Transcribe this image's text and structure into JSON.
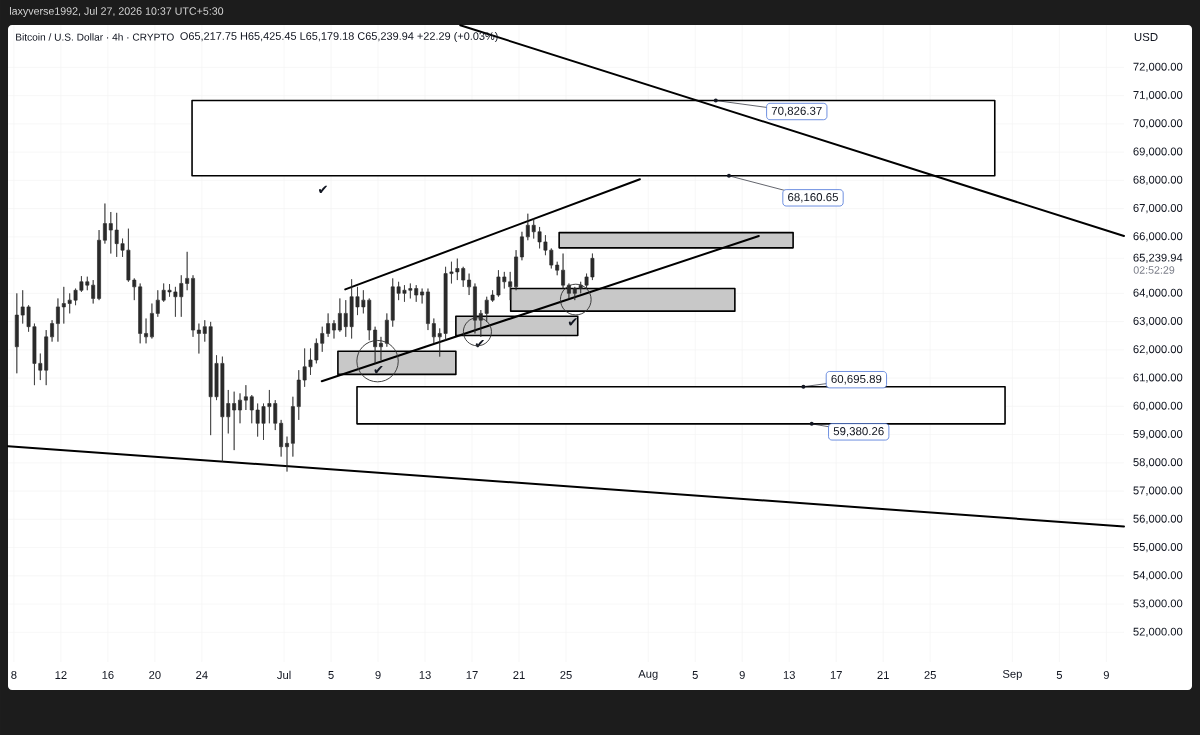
{
  "chart_data": {
    "type": "candlestick",
    "title": "Bitcoin / U.S. Dollar · 4h · CRYPTO",
    "subtitle": "O65,217.75 H65,425.45 L65,179.18 C65,239.94 +22.29 (+0.03%)",
    "ylabel": "USD",
    "annotations": [
      "laxyverse1992, Jul 27, 2026 10:37 UTC+5:30",
      "02:52:29",
      {
        "text": "70,826.37",
        "x": "2026-08-06T18:00",
        "y": 70826.37
      },
      {
        "text": "68,160.65",
        "x": "2026-08-07T21:00",
        "y": 68160.65
      },
      {
        "text": "60,695.89",
        "x": "2026-08-14T05:00",
        "y": 60695.89
      },
      {
        "text": "59,380.26",
        "x": "2026-08-14T22:00",
        "y": 59380.26
      },
      "✔",
      {
        "text": "✔",
        "x": "2026-07-09T01:00",
        "y": 61280
      },
      {
        "text": "✔",
        "x": "2026-07-17T16:00",
        "y": 62200
      },
      {
        "text": "✔",
        "x": "2026-07-25T14:00",
        "y": 62970
      }
    ],
    "xlim": [
      "2026-06-07T12:00",
      "2026-09-10T12:00"
    ],
    "ylim": [
      50950,
      73500
    ],
    "xticks": [
      {
        "value": "2026-06-08",
        "label": "8"
      },
      {
        "value": "2026-06-12",
        "label": "12"
      },
      {
        "value": "2026-06-16",
        "label": "16"
      },
      {
        "value": "2026-06-20",
        "label": "20"
      },
      {
        "value": "2026-06-24",
        "label": "24"
      },
      {
        "value": "2026-07-01",
        "label": "Jul"
      },
      {
        "value": "2026-07-05",
        "label": "5"
      },
      {
        "value": "2026-07-09",
        "label": "9"
      },
      {
        "value": "2026-07-13",
        "label": "13"
      },
      {
        "value": "2026-07-17",
        "label": "17"
      },
      {
        "value": "2026-07-21",
        "label": "21"
      },
      {
        "value": "2026-07-25",
        "label": "25"
      },
      {
        "value": "2026-08-01",
        "label": "Aug"
      },
      {
        "value": "2026-08-05",
        "label": "5"
      },
      {
        "value": "2026-08-09",
        "label": "9"
      },
      {
        "value": "2026-08-13",
        "label": "13"
      },
      {
        "value": "2026-08-17",
        "label": "17"
      },
      {
        "value": "2026-08-21",
        "label": "21"
      },
      {
        "value": "2026-08-25",
        "label": "25"
      },
      {
        "value": "2026-09-01",
        "label": "Sep"
      },
      {
        "value": "2026-09-05",
        "label": "5"
      },
      {
        "value": "2026-09-09",
        "label": "9"
      }
    ],
    "yticks": [
      {
        "value": 52000,
        "label": "52,000.00"
      },
      {
        "value": 53000,
        "label": "53,000.00"
      },
      {
        "value": 54000,
        "label": "54,000.00"
      },
      {
        "value": 55000,
        "label": "55,000.00"
      },
      {
        "value": 56000,
        "label": "56,000.00"
      },
      {
        "value": 57000,
        "label": "57,000.00"
      },
      {
        "value": 58000,
        "label": "58,000.00"
      },
      {
        "value": 59000,
        "label": "59,000.00"
      },
      {
        "value": 60000,
        "label": "60,000.00"
      },
      {
        "value": 61000,
        "label": "61,000.00"
      },
      {
        "value": 62000,
        "label": "62,000.00"
      },
      {
        "value": 63000,
        "label": "63,000.00"
      },
      {
        "value": 64000,
        "label": "64,000.00"
      },
      {
        "value": 65239.94,
        "label": "65,239.94"
      },
      {
        "value": 66000,
        "label": "66,000.00"
      },
      {
        "value": 67000,
        "label": "67,000.00"
      },
      {
        "value": 68000,
        "label": "68,000.00"
      },
      {
        "value": 69000,
        "label": "69,000.00"
      },
      {
        "value": 70000,
        "label": "70,000.00"
      },
      {
        "value": 71000,
        "label": "71,000.00"
      },
      {
        "value": 72000,
        "label": "72,000.00"
      }
    ],
    "grid": true,
    "series": [
      {
        "color": "#2a2a2a",
        "x": [
          "2026-06-08T06:00",
          "2026-06-08T18:00",
          "2026-06-09T06:00",
          "2026-06-09T18:00",
          "2026-06-10T06:00",
          "2026-06-10T18:00",
          "2026-06-11T06:00",
          "2026-06-11T18:00",
          "2026-06-12T06:00",
          "2026-06-12T18:00",
          "2026-06-13T06:00",
          "2026-06-13T18:00",
          "2026-06-14T06:00",
          "2026-06-14T18:00",
          "2026-06-15T06:00",
          "2026-06-15T18:00",
          "2026-06-16T06:00",
          "2026-06-16T18:00",
          "2026-06-17T06:00",
          "2026-06-17T18:00",
          "2026-06-18T06:00",
          "2026-06-18T18:00",
          "2026-06-19T06:00",
          "2026-06-19T18:00",
          "2026-06-20T06:00",
          "2026-06-20T18:00",
          "2026-06-21T06:00",
          "2026-06-21T18:00",
          "2026-06-22T06:00",
          "2026-06-22T18:00",
          "2026-06-23T06:00",
          "2026-06-23T18:00",
          "2026-06-24T06:00",
          "2026-06-24T18:00",
          "2026-06-25T06:00",
          "2026-06-25T18:00",
          "2026-06-26T06:00",
          "2026-06-26T18:00",
          "2026-06-27T06:00",
          "2026-06-27T18:00",
          "2026-06-28T06:00",
          "2026-06-28T18:00",
          "2026-06-29T06:00",
          "2026-06-29T18:00",
          "2026-06-30T06:00",
          "2026-06-30T18:00",
          "2026-07-01T06:00",
          "2026-07-01T18:00",
          "2026-07-02T06:00",
          "2026-07-02T18:00",
          "2026-07-03T06:00",
          "2026-07-03T18:00",
          "2026-07-04T06:00",
          "2026-07-04T18:00",
          "2026-07-05T06:00",
          "2026-07-05T18:00",
          "2026-07-06T06:00",
          "2026-07-06T18:00",
          "2026-07-07T06:00",
          "2026-07-07T18:00",
          "2026-07-08T06:00",
          "2026-07-08T18:00",
          "2026-07-09T06:00",
          "2026-07-09T18:00",
          "2026-07-10T06:00",
          "2026-07-10T18:00",
          "2026-07-11T06:00",
          "2026-07-11T18:00",
          "2026-07-12T06:00",
          "2026-07-12T18:00",
          "2026-07-13T06:00",
          "2026-07-13T18:00",
          "2026-07-14T06:00",
          "2026-07-14T18:00",
          "2026-07-15T06:00",
          "2026-07-15T18:00",
          "2026-07-16T06:00",
          "2026-07-16T18:00",
          "2026-07-17T06:00",
          "2026-07-17T18:00",
          "2026-07-18T06:00",
          "2026-07-18T18:00",
          "2026-07-19T06:00",
          "2026-07-19T18:00",
          "2026-07-20T06:00",
          "2026-07-20T18:00",
          "2026-07-21T06:00",
          "2026-07-21T18:00",
          "2026-07-22T06:00",
          "2026-07-22T18:00",
          "2026-07-23T06:00",
          "2026-07-23T18:00",
          "2026-07-24T06:00",
          "2026-07-24T18:00",
          "2026-07-25T06:00",
          "2026-07-25T18:00",
          "2026-07-26T06:00",
          "2026-07-26T18:00",
          "2026-07-27T06:00"
        ],
        "ohlc": [
          [
            62110,
            64000,
            61170,
            63230
          ],
          [
            63230,
            64110,
            62930,
            63520
          ],
          [
            63520,
            63580,
            62640,
            62820
          ],
          [
            62820,
            62930,
            60750,
            61520
          ],
          [
            61520,
            61870,
            60930,
            61280
          ],
          [
            61280,
            62700,
            60750,
            62460
          ],
          [
            62460,
            63050,
            62290,
            62930
          ],
          [
            62930,
            63820,
            62290,
            63520
          ],
          [
            63520,
            64230,
            62930,
            63640
          ],
          [
            63640,
            64000,
            63290,
            63760
          ],
          [
            63760,
            64170,
            63580,
            64110
          ],
          [
            64110,
            64610,
            64050,
            64410
          ],
          [
            64410,
            64590,
            64110,
            64290
          ],
          [
            64290,
            64470,
            63640,
            63820
          ],
          [
            63820,
            66240,
            63760,
            65880
          ],
          [
            65880,
            67180,
            65760,
            66470
          ],
          [
            66470,
            66880,
            65410,
            66240
          ],
          [
            66240,
            66850,
            65290,
            65760
          ],
          [
            65760,
            65940,
            65290,
            65530
          ],
          [
            65530,
            66290,
            64410,
            64470
          ],
          [
            64470,
            64530,
            63760,
            64230
          ],
          [
            64230,
            64350,
            62230,
            62580
          ],
          [
            62580,
            63110,
            62230,
            62460
          ],
          [
            62460,
            63640,
            62400,
            63290
          ],
          [
            63290,
            64110,
            63170,
            63760
          ],
          [
            63760,
            64350,
            63700,
            64110
          ],
          [
            64110,
            64330,
            63880,
            64050
          ],
          [
            64050,
            64230,
            63170,
            63880
          ],
          [
            63880,
            64640,
            63170,
            64350
          ],
          [
            64350,
            65470,
            64110,
            64530
          ],
          [
            64530,
            64640,
            62460,
            62700
          ],
          [
            62700,
            62930,
            61870,
            62580
          ],
          [
            62580,
            63050,
            62290,
            62820
          ],
          [
            62820,
            62990,
            58980,
            60340
          ],
          [
            60340,
            61810,
            60220,
            61520
          ],
          [
            61520,
            61760,
            58040,
            59630
          ],
          [
            59630,
            60580,
            59040,
            60100
          ],
          [
            60100,
            60520,
            58450,
            59870
          ],
          [
            59870,
            60460,
            59400,
            60220
          ],
          [
            60220,
            60750,
            59870,
            60340
          ],
          [
            60340,
            60400,
            59400,
            59870
          ],
          [
            59870,
            60100,
            58930,
            59400
          ],
          [
            59400,
            60100,
            58810,
            59990
          ],
          [
            59990,
            60580,
            59400,
            60100
          ],
          [
            60100,
            60220,
            59160,
            59400
          ],
          [
            59400,
            59520,
            58220,
            58570
          ],
          [
            58570,
            58930,
            57690,
            58690
          ],
          [
            58690,
            60340,
            58220,
            59990
          ],
          [
            59990,
            61280,
            59520,
            60930
          ],
          [
            60930,
            62050,
            60690,
            61400
          ],
          [
            61400,
            62050,
            61110,
            61640
          ],
          [
            61640,
            62400,
            61520,
            62230
          ],
          [
            62230,
            62820,
            61930,
            62580
          ],
          [
            62580,
            63290,
            62460,
            62930
          ],
          [
            62930,
            63050,
            62400,
            62700
          ],
          [
            62700,
            63820,
            62640,
            63290
          ],
          [
            63290,
            63760,
            62460,
            62820
          ],
          [
            62820,
            64500,
            62400,
            63880
          ],
          [
            63880,
            64230,
            63230,
            63520
          ],
          [
            63520,
            64110,
            63290,
            63760
          ],
          [
            63760,
            63820,
            62340,
            62700
          ],
          [
            62700,
            62820,
            61520,
            62110
          ],
          [
            62110,
            62460,
            61640,
            62230
          ],
          [
            62230,
            63290,
            62110,
            63050
          ],
          [
            63050,
            64530,
            62820,
            64230
          ],
          [
            64230,
            64410,
            63760,
            64000
          ],
          [
            64000,
            64290,
            63700,
            64110
          ],
          [
            64110,
            64350,
            63820,
            64170
          ],
          [
            64170,
            64290,
            63700,
            63940
          ],
          [
            63940,
            64170,
            63640,
            64050
          ],
          [
            64050,
            64170,
            62700,
            62930
          ],
          [
            62930,
            63110,
            62230,
            62460
          ],
          [
            62460,
            62760,
            61760,
            62580
          ],
          [
            62580,
            64940,
            62340,
            64700
          ],
          [
            64700,
            65120,
            64350,
            64760
          ],
          [
            64760,
            65230,
            64470,
            64880
          ],
          [
            64880,
            64940,
            64230,
            64470
          ],
          [
            64470,
            64700,
            63940,
            64230
          ],
          [
            64230,
            64350,
            62580,
            63050
          ],
          [
            63050,
            63410,
            62460,
            63290
          ],
          [
            63290,
            63880,
            62990,
            63760
          ],
          [
            63760,
            64110,
            63700,
            63940
          ],
          [
            63940,
            64820,
            63880,
            64580
          ],
          [
            64580,
            64760,
            64170,
            64410
          ],
          [
            64410,
            64760,
            63760,
            64230
          ],
          [
            64230,
            65530,
            64110,
            65290
          ],
          [
            65290,
            66180,
            65170,
            66000
          ],
          [
            66000,
            66820,
            65880,
            66410
          ],
          [
            66410,
            66650,
            65940,
            66180
          ],
          [
            66180,
            66350,
            65590,
            65820
          ],
          [
            65820,
            66060,
            65350,
            65530
          ],
          [
            65530,
            65590,
            64880,
            65000
          ],
          [
            65000,
            65120,
            64640,
            64820
          ],
          [
            64820,
            65410,
            64170,
            64290
          ],
          [
            64290,
            64350,
            63820,
            64000
          ],
          [
            64000,
            64230,
            63760,
            64170
          ],
          [
            64170,
            64410,
            64000,
            64290
          ],
          [
            64290,
            64700,
            64170,
            64580
          ],
          [
            64580,
            65410,
            64470,
            65240
          ]
        ]
      },
      {
        "type": "line",
        "color": "#000000",
        "x": [
          "2026-07-16T00:00",
          "2026-09-10T12:00"
        ],
        "values": [
          73490,
          66030
        ]
      },
      {
        "type": "line",
        "color": "#000000",
        "x": [
          "2026-06-07T12:00",
          "2026-09-10T12:00"
        ],
        "values": [
          58590,
          55750
        ]
      },
      {
        "type": "line",
        "color": "#000000",
        "x": [
          "2026-07-06T05:00",
          "2026-07-31T07:00"
        ],
        "values": [
          64140,
          68040
        ]
      },
      {
        "type": "line",
        "color": "#000000",
        "x": [
          "2026-07-04T05:00",
          "2026-08-10T10:00"
        ],
        "values": [
          60890,
          66030
        ]
      },
      {
        "type": "area",
        "color": "#ffffff",
        "x": [
          "2026-06-23T04:00",
          "2026-08-30T12:00",
          "2026-08-30T12:00",
          "2026-06-23T04:00",
          "2026-06-23T04:00"
        ],
        "values": [
          68160.65,
          68160.65,
          70826.37,
          70826.37,
          68160.65
        ]
      },
      {
        "type": "area",
        "color": "#ffffff",
        "x": [
          "2026-07-07T05:00",
          "2026-08-31T09:00",
          "2026-08-31T09:00",
          "2026-07-07T05:00",
          "2026-07-07T05:00"
        ],
        "values": [
          59380.26,
          59380.26,
          60695.89,
          60695.89,
          59380.26
        ]
      },
      {
        "type": "area",
        "color": "#c8c8c8",
        "x": [
          "2026-07-05T14:00",
          "2026-07-15T15:00",
          "2026-07-15T15:00",
          "2026-07-05T14:00",
          "2026-07-05T14:00"
        ],
        "values": [
          61130,
          61130,
          61950,
          61950,
          61130
        ]
      },
      {
        "type": "area",
        "color": "#c8c8c8",
        "x": [
          "2026-07-15T15:00",
          "2026-07-26T00:00",
          "2026-07-26T00:00",
          "2026-07-15T15:00",
          "2026-07-15T15:00"
        ],
        "values": [
          62510,
          62510,
          63190,
          63190,
          62510
        ]
      },
      {
        "type": "area",
        "color": "#c8c8c8",
        "x": [
          "2026-07-20T07:00",
          "2026-08-08T09:00",
          "2026-08-08T09:00",
          "2026-07-20T07:00",
          "2026-07-20T07:00"
        ],
        "values": [
          63370,
          63370,
          64170,
          64170,
          63370
        ]
      },
      {
        "type": "area",
        "color": "#c8c8c8",
        "x": [
          "2026-07-24T10:00",
          "2026-08-13T08:00",
          "2026-08-13T08:00",
          "2026-07-24T10:00",
          "2026-07-24T10:00"
        ],
        "values": [
          65610,
          65610,
          66150,
          66150,
          65610
        ]
      },
      {
        "type": "bubble",
        "color": "#333333",
        "x": [
          "2026-07-08T23:00",
          "2026-07-17T11:00",
          "2026-07-25T20:00"
        ],
        "values": [
          61600,
          62640,
          63780
        ],
        "sizes": [
          1,
          0.46,
          0.55
        ]
      }
    ]
  }
}
